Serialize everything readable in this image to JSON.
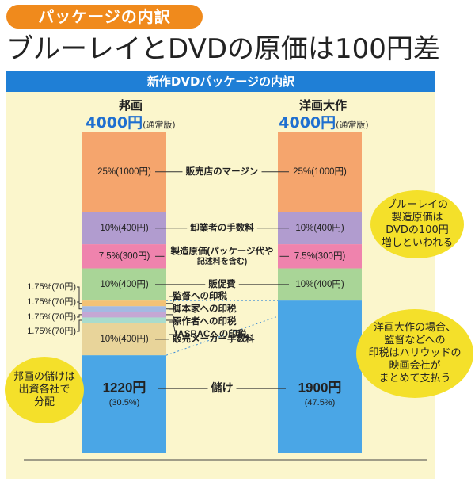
{
  "header": {
    "tag": "パッケージの内訳",
    "headline": "ブルーレイとDVDの原価は100円差",
    "band": "新作DVDパッケージの内訳"
  },
  "columns": [
    {
      "name": "邦画",
      "price": "4000円",
      "edition": "(通常版)"
    },
    {
      "name": "洋画大作",
      "price": "4000円",
      "edition": "(通常版)"
    }
  ],
  "callouts": {
    "japanese": "邦画の儲けは\n出資各社で\n分配",
    "bluray": "ブルーレイの\n製造原価は\nDVDの100円\n増しといわれる",
    "western": "洋画大作の場合、\n監督などへの\n印税はハリウッドの\n映画会社が\nまとめて支払う"
  },
  "colors": {
    "margin": "#f5a56d",
    "wholesale": "#b19ccf",
    "manufacturing": "#ef83ad",
    "promo": "#a9d597",
    "royalty_director": "#f3c276",
    "royalty_writer": "#a4b9e2",
    "royalty_author": "#c5a7d4",
    "royalty_jasrac": "#a9dccd",
    "distributor": "#e8d49a",
    "profit": "#4aa6e6",
    "tag": "#f08a1c",
    "band": "#1f7fd6",
    "panel": "#fbf6cc",
    "callout": "#f4e02a"
  },
  "chart_data": {
    "type": "bar",
    "subtype": "stacked-100",
    "title": "新作DVDパッケージの内訳",
    "categories": [
      "邦画",
      "洋画大作"
    ],
    "total_yen": 4000,
    "japanese_film": [
      {
        "label": "販売店のマージン",
        "percent": 25,
        "yen": 1000,
        "text": "25%(1000円)",
        "color": "#f5a56d"
      },
      {
        "label": "卸業者の手数料",
        "percent": 10,
        "yen": 400,
        "text": "10%(400円)",
        "color": "#b19ccf"
      },
      {
        "label": "製造原価(パッケージ代や記述料を含む)",
        "label_line1": "製造原価(パッケージ代や",
        "label_line2": "記述料を含む)",
        "percent": 7.5,
        "yen": 300,
        "text": "7.5%(300円)",
        "color": "#ef83ad"
      },
      {
        "label": "販促費",
        "percent": 10,
        "yen": 400,
        "text": "10%(400円)",
        "color": "#a9d597"
      },
      {
        "label": "監督への印税",
        "percent": 1.75,
        "yen": 70,
        "text": "1.75%(70円)",
        "color": "#f3c276"
      },
      {
        "label": "脚本家への印税",
        "percent": 1.75,
        "yen": 70,
        "text": "1.75%(70円)",
        "color": "#a4b9e2"
      },
      {
        "label": "原作者への印税",
        "percent": 1.75,
        "yen": 70,
        "text": "1.75%(70円)",
        "color": "#c5a7d4"
      },
      {
        "label": "JASRACへの印税",
        "percent": 1.75,
        "yen": 70,
        "text": "1.75%(70円)",
        "color": "#a9dccd"
      },
      {
        "label": "販売メーカー手数料",
        "percent": 10,
        "yen": 400,
        "text": "10%(400円)",
        "color": "#e8d49a"
      },
      {
        "label": "儲け",
        "percent": 30.5,
        "yen": 1220,
        "text": "1220円",
        "sub": "(30.5%)",
        "color": "#4aa6e6"
      }
    ],
    "western_film": [
      {
        "label": "販売店のマージン",
        "percent": 25,
        "yen": 1000,
        "text": "25%(1000円)",
        "color": "#f5a56d"
      },
      {
        "label": "卸業者の手数料",
        "percent": 10,
        "yen": 400,
        "text": "10%(400円)",
        "color": "#b19ccf"
      },
      {
        "label": "製造原価",
        "percent": 7.5,
        "yen": 300,
        "text": "7.5%(300円)",
        "color": "#ef83ad"
      },
      {
        "label": "販促費",
        "percent": 10,
        "yen": 400,
        "text": "10%(400円)",
        "color": "#a9d597"
      },
      {
        "label": "儲け",
        "percent": 47.5,
        "yen": 1900,
        "text": "1900円",
        "sub": "(47.5%)",
        "color": "#4aa6e6"
      }
    ]
  }
}
